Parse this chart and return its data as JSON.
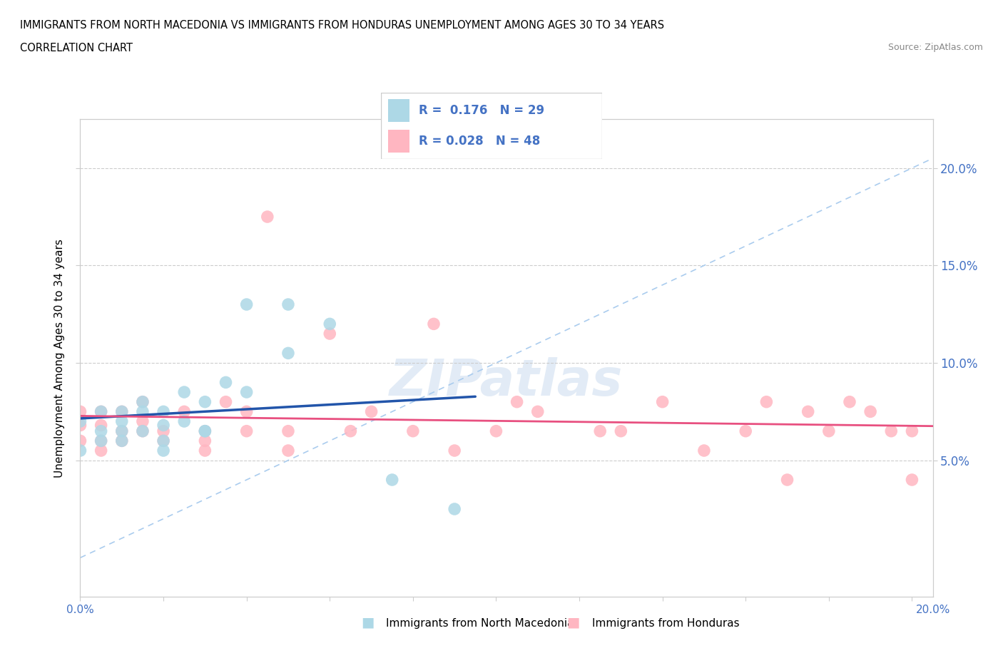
{
  "title_line1": "IMMIGRANTS FROM NORTH MACEDONIA VS IMMIGRANTS FROM HONDURAS UNEMPLOYMENT AMONG AGES 30 TO 34 YEARS",
  "title_line2": "CORRELATION CHART",
  "source": "Source: ZipAtlas.com",
  "ylabel": "Unemployment Among Ages 30 to 34 years",
  "xlim": [
    0.0,
    0.205
  ],
  "ylim": [
    -0.02,
    0.225
  ],
  "yticks": [
    0.05,
    0.1,
    0.15,
    0.2
  ],
  "ytick_labels": [
    "5.0%",
    "10.0%",
    "15.0%",
    "20.0%"
  ],
  "xtick_labels": [
    "0.0%",
    "",
    "",
    "",
    "",
    "",
    "",
    "",
    "",
    "",
    "20.0%"
  ],
  "color_blue": "#ADD8E6",
  "color_pink": "#FFB6C1",
  "color_blue_line": "#2255AA",
  "color_pink_line": "#E85080",
  "color_diag": "#AACCEE",
  "color_blue_text": "#4472C4",
  "legend_label1": "Immigrants from North Macedonia",
  "legend_label2": "Immigrants from Honduras",
  "nm_x": [
    0.0,
    0.0,
    0.005,
    0.005,
    0.005,
    0.01,
    0.01,
    0.01,
    0.01,
    0.015,
    0.015,
    0.015,
    0.02,
    0.02,
    0.02,
    0.02,
    0.025,
    0.025,
    0.03,
    0.03,
    0.03,
    0.035,
    0.04,
    0.04,
    0.05,
    0.05,
    0.06,
    0.075,
    0.09
  ],
  "nm_y": [
    0.07,
    0.055,
    0.075,
    0.065,
    0.06,
    0.075,
    0.07,
    0.065,
    0.06,
    0.08,
    0.075,
    0.065,
    0.075,
    0.068,
    0.06,
    0.055,
    0.085,
    0.07,
    0.08,
    0.065,
    0.065,
    0.09,
    0.13,
    0.085,
    0.105,
    0.13,
    0.12,
    0.04,
    0.025
  ],
  "h_x": [
    0.0,
    0.0,
    0.0,
    0.005,
    0.005,
    0.005,
    0.005,
    0.01,
    0.01,
    0.01,
    0.015,
    0.015,
    0.015,
    0.02,
    0.02,
    0.025,
    0.03,
    0.03,
    0.03,
    0.035,
    0.04,
    0.04,
    0.045,
    0.05,
    0.05,
    0.06,
    0.065,
    0.07,
    0.08,
    0.085,
    0.09,
    0.1,
    0.105,
    0.11,
    0.125,
    0.13,
    0.14,
    0.15,
    0.16,
    0.165,
    0.17,
    0.175,
    0.18,
    0.185,
    0.19,
    0.195,
    0.2,
    0.2
  ],
  "h_y": [
    0.075,
    0.068,
    0.06,
    0.075,
    0.068,
    0.06,
    0.055,
    0.075,
    0.065,
    0.06,
    0.08,
    0.07,
    0.065,
    0.065,
    0.06,
    0.075,
    0.065,
    0.06,
    0.055,
    0.08,
    0.075,
    0.065,
    0.175,
    0.065,
    0.055,
    0.115,
    0.065,
    0.075,
    0.065,
    0.12,
    0.055,
    0.065,
    0.08,
    0.075,
    0.065,
    0.065,
    0.08,
    0.055,
    0.065,
    0.08,
    0.04,
    0.075,
    0.065,
    0.08,
    0.075,
    0.065,
    0.04,
    0.065
  ],
  "bg_color": "#FFFFFF"
}
